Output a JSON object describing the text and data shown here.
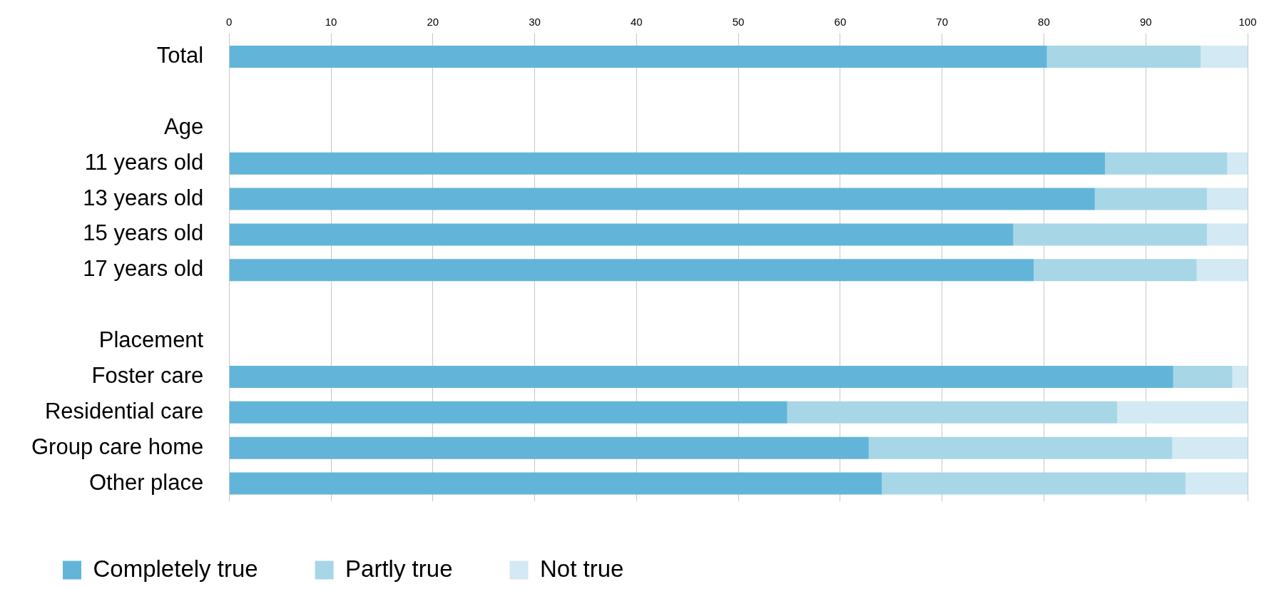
{
  "chart_data": {
    "type": "bar",
    "orientation": "horizontal",
    "stacked": true,
    "categories": [
      "Total",
      null,
      "Age",
      "11 years old",
      "13 years old",
      "15 years old",
      "17 years old",
      null,
      "Placement",
      "Foster care",
      "Residential care",
      "Group care home",
      "Other place"
    ],
    "series": [
      {
        "name": "Completely true",
        "color": "#62b5d9",
        "values": [
          80.3,
          null,
          null,
          86.0,
          85.0,
          77.0,
          79.0,
          null,
          null,
          92.7,
          54.8,
          62.8,
          64.1
        ]
      },
      {
        "name": "Partly true",
        "color": "#a7d6e7",
        "values": [
          15.1,
          null,
          null,
          12.0,
          11.0,
          19.0,
          16.0,
          null,
          null,
          5.8,
          32.4,
          29.8,
          29.8
        ]
      },
      {
        "name": "Not true",
        "color": "#d3e9f3",
        "values": [
          4.6,
          null,
          null,
          2.0,
          4.0,
          4.0,
          5.0,
          null,
          null,
          1.5,
          12.8,
          7.4,
          6.1
        ]
      }
    ],
    "xlim": [
      0,
      100
    ],
    "xticks": [
      0,
      10,
      20,
      30,
      40,
      50,
      60,
      70,
      80,
      90,
      100
    ],
    "grid": "x",
    "legend": "bottom"
  }
}
